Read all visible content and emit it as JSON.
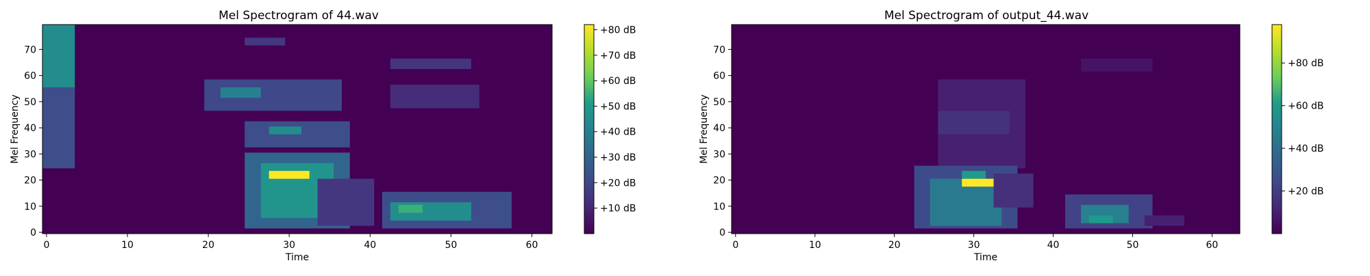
{
  "chart_data": [
    {
      "type": "heatmap",
      "title": "Mel Spectrogram of 44.wav",
      "xlabel": "Time",
      "ylabel": "Mel Frequency",
      "xlim": [
        -0.5,
        62.5
      ],
      "ylim": [
        -0.5,
        79.5
      ],
      "xticks": [
        0,
        10,
        20,
        30,
        40,
        50,
        60
      ],
      "yticks": [
        0,
        10,
        20,
        30,
        40,
        50,
        60,
        70
      ],
      "colormap": "viridis",
      "background_value": 0,
      "colorbar": {
        "min": 0,
        "max": 82,
        "ticks": [
          10,
          20,
          30,
          40,
          50,
          60,
          70,
          80
        ],
        "labels": [
          "+10 dB",
          "+20 dB",
          "+30 dB",
          "+40 dB",
          "+50 dB",
          "+60 dB",
          "+70 dB",
          "+80 dB"
        ]
      },
      "regions": [
        {
          "t": [
            0,
            3
          ],
          "f": [
            55,
            79
          ],
          "value": 45
        },
        {
          "t": [
            0,
            3
          ],
          "f": [
            25,
            55
          ],
          "value": 22
        },
        {
          "t": [
            25,
            29
          ],
          "f": [
            72,
            74
          ],
          "value": 15
        },
        {
          "t": [
            20,
            36
          ],
          "f": [
            47,
            58
          ],
          "value": 20
        },
        {
          "t": [
            22,
            26
          ],
          "f": [
            52,
            55
          ],
          "value": 40
        },
        {
          "t": [
            25,
            37
          ],
          "f": [
            33,
            42
          ],
          "value": 22
        },
        {
          "t": [
            28,
            31
          ],
          "f": [
            38,
            40
          ],
          "value": 45
        },
        {
          "t": [
            25,
            37
          ],
          "f": [
            2,
            30
          ],
          "value": 30
        },
        {
          "t": [
            27,
            35
          ],
          "f": [
            6,
            26
          ],
          "value": 48
        },
        {
          "t": [
            28,
            32
          ],
          "f": [
            21,
            23
          ],
          "value": 82
        },
        {
          "t": [
            34,
            40
          ],
          "f": [
            3,
            20
          ],
          "value": 15
        },
        {
          "t": [
            42,
            57
          ],
          "f": [
            2,
            15
          ],
          "value": 22
        },
        {
          "t": [
            43,
            52
          ],
          "f": [
            5,
            11
          ],
          "value": 45
        },
        {
          "t": [
            44,
            46
          ],
          "f": [
            8,
            10
          ],
          "value": 55
        },
        {
          "t": [
            43,
            53
          ],
          "f": [
            48,
            56
          ],
          "value": 12
        },
        {
          "t": [
            43,
            52
          ],
          "f": [
            63,
            66
          ],
          "value": 14
        }
      ]
    },
    {
      "type": "heatmap",
      "title": "Mel Spectrogram of output_44.wav",
      "xlabel": "Time",
      "ylabel": "Mel Frequency",
      "xlim": [
        -0.5,
        63.5
      ],
      "ylim": [
        -0.5,
        79.5
      ],
      "xticks": [
        0,
        10,
        20,
        30,
        40,
        50,
        60
      ],
      "yticks": [
        0,
        10,
        20,
        30,
        40,
        50,
        60,
        70
      ],
      "colormap": "viridis",
      "background_value": 0,
      "colorbar": {
        "min": 0,
        "max": 98,
        "ticks": [
          20,
          40,
          60,
          80
        ],
        "labels": [
          "+20 dB",
          "+40 dB",
          "+60 dB",
          "+80 dB"
        ]
      },
      "regions": [
        {
          "t": [
            26,
            36
          ],
          "f": [
            25,
            58
          ],
          "value": 10
        },
        {
          "t": [
            26,
            34
          ],
          "f": [
            38,
            46
          ],
          "value": 16
        },
        {
          "t": [
            23,
            35
          ],
          "f": [
            2,
            25
          ],
          "value": 25
        },
        {
          "t": [
            25,
            33
          ],
          "f": [
            3,
            20
          ],
          "value": 45
        },
        {
          "t": [
            29,
            31
          ],
          "f": [
            21,
            23
          ],
          "value": 60
        },
        {
          "t": [
            29,
            32
          ],
          "f": [
            18,
            20
          ],
          "value": 98
        },
        {
          "t": [
            33,
            37
          ],
          "f": [
            10,
            22
          ],
          "value": 15
        },
        {
          "t": [
            42,
            52
          ],
          "f": [
            2,
            14
          ],
          "value": 22
        },
        {
          "t": [
            44,
            49
          ],
          "f": [
            4,
            10
          ],
          "value": 48
        },
        {
          "t": [
            45,
            47
          ],
          "f": [
            4,
            6
          ],
          "value": 60
        },
        {
          "t": [
            52,
            56
          ],
          "f": [
            3,
            6
          ],
          "value": 10
        },
        {
          "t": [
            44,
            52
          ],
          "f": [
            62,
            66
          ],
          "value": 6
        }
      ]
    }
  ]
}
